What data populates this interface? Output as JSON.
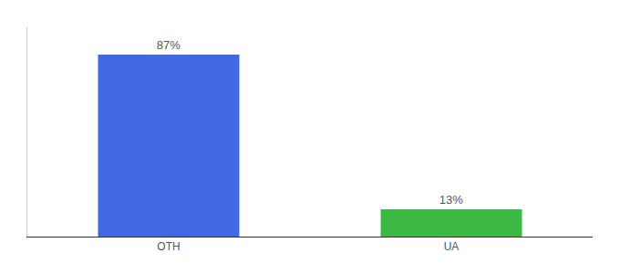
{
  "chart_data": {
    "type": "bar",
    "categories": [
      "OTH",
      "UA"
    ],
    "values": [
      87,
      13
    ],
    "value_labels": [
      "87%",
      "13%"
    ],
    "data_labels": true,
    "colors": [
      "#4169e1",
      "#3cb843"
    ],
    "ylim": [
      0,
      100
    ],
    "grid": false,
    "tick_labels": "x"
  }
}
